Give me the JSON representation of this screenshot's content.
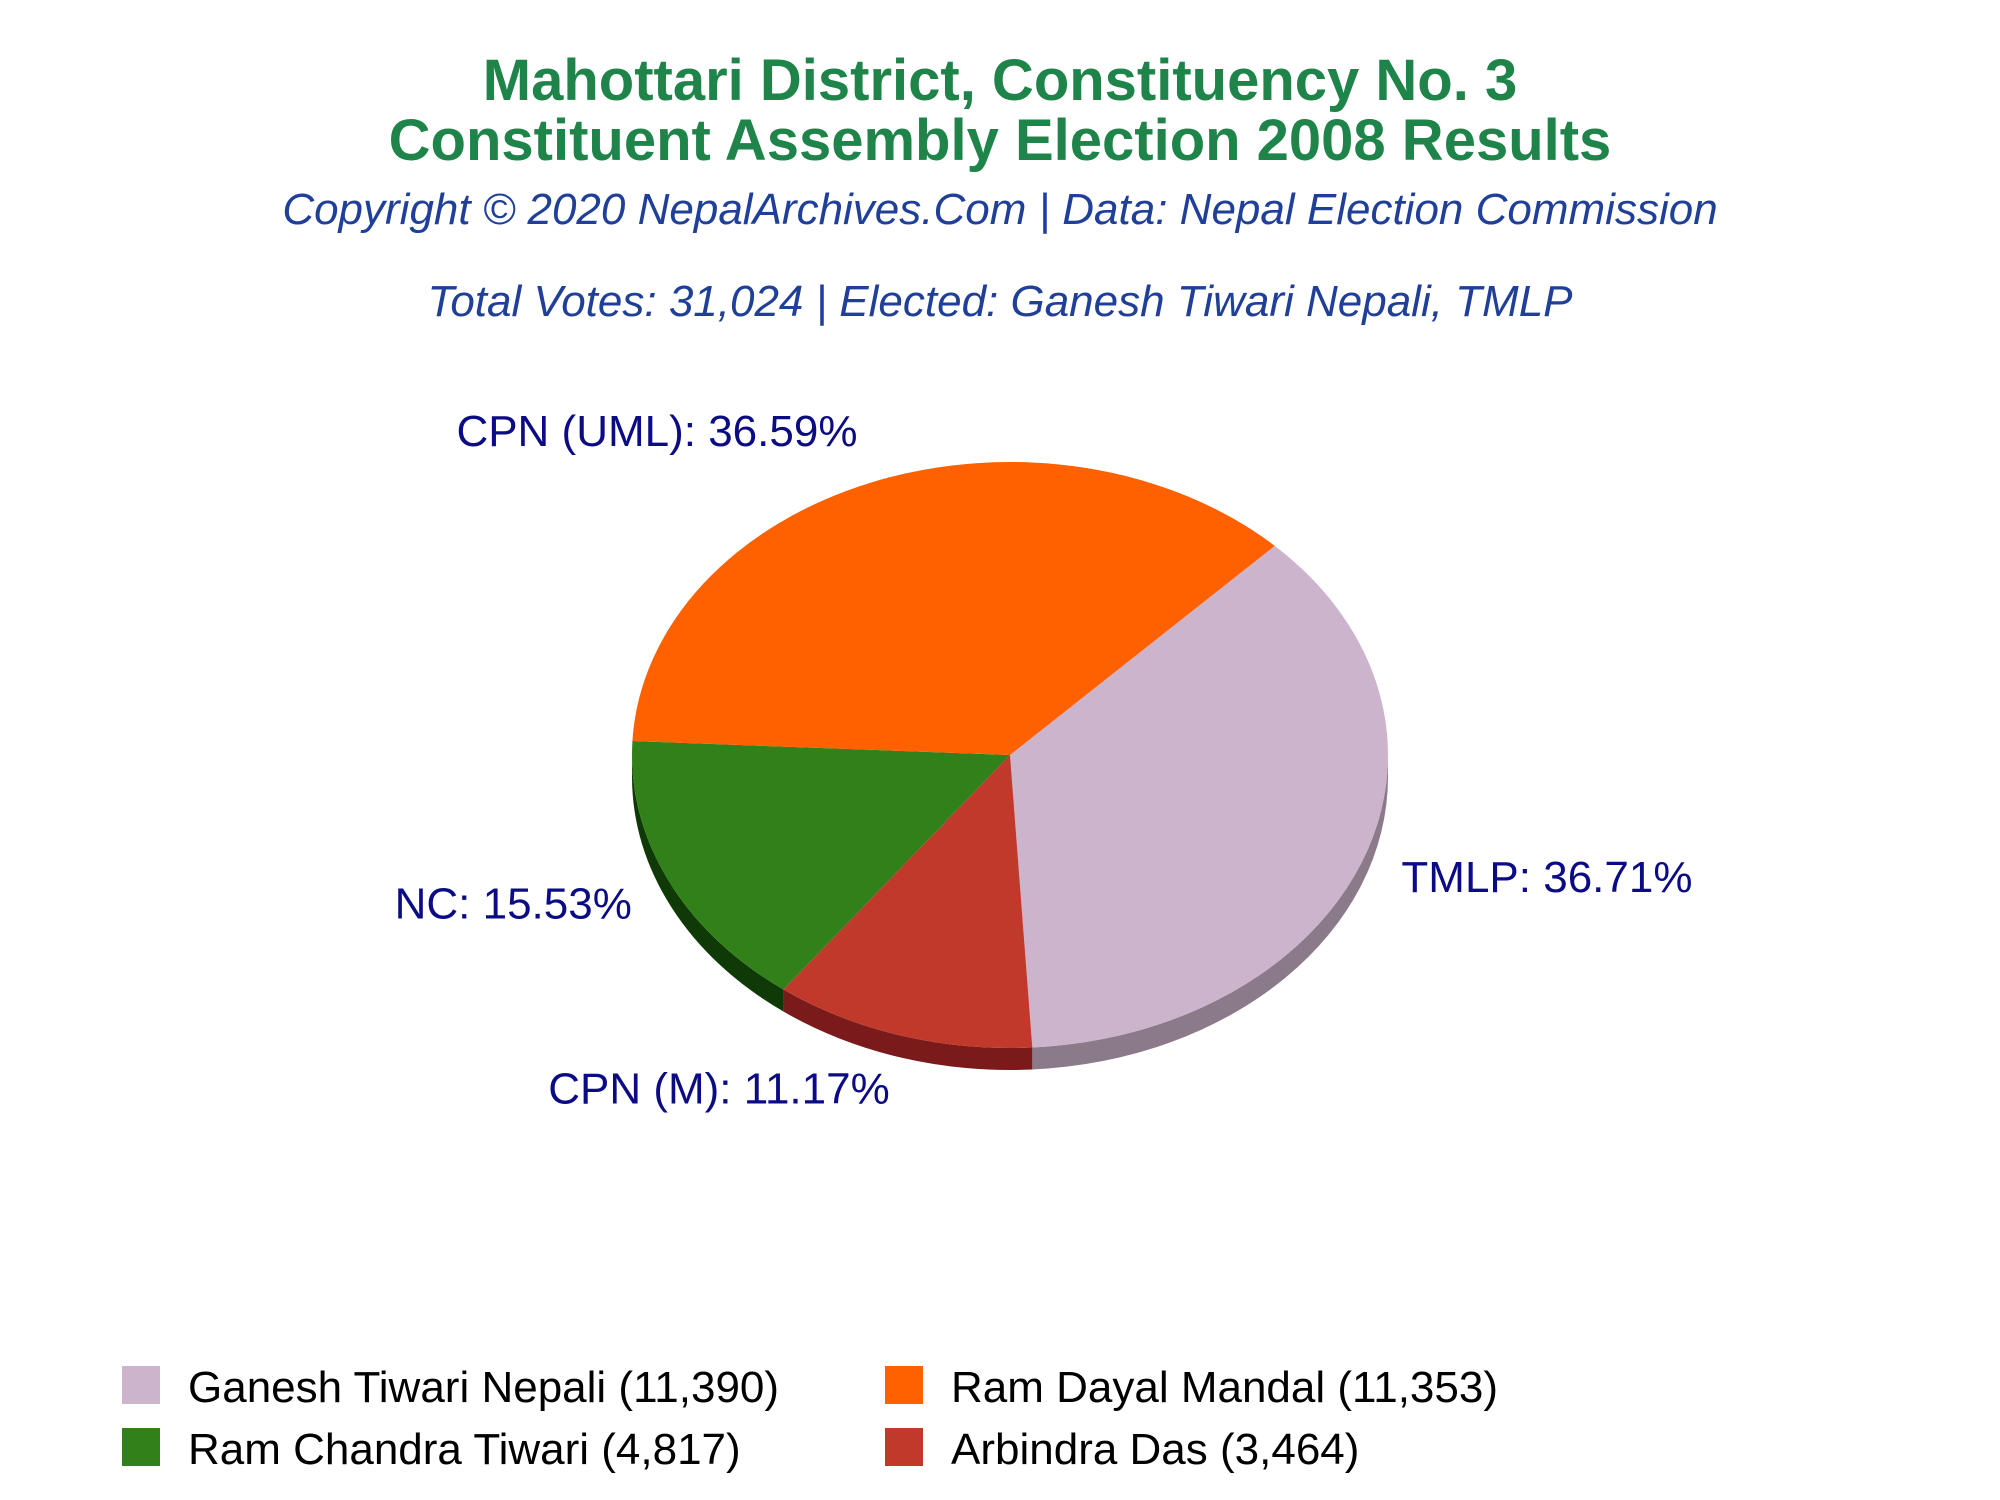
{
  "header": {
    "title_line1": "Mahottari District, Constituency No. 3",
    "title_line2": "Constituent Assembly Election 2008 Results",
    "copyright": "Copyright © 2020 NepalArchives.Com | Data: Nepal Election Commission",
    "summary": "Total Votes: 31,024 | Elected: Ganesh Tiwari Nepali, TMLP"
  },
  "chart_data": {
    "type": "pie",
    "title": "Mahottari District, Constituency No. 3 Constituent Assembly Election 2008 Results",
    "style": "3d",
    "total_votes": 31024,
    "slices": [
      {
        "party": "TMLP",
        "candidate": "Ganesh Tiwari Nepali",
        "votes": 11390,
        "percent": 36.71,
        "label": "TMLP: 36.71%",
        "legend": "Ganesh Tiwari Nepali (11,390)",
        "color": "#cdb4cd"
      },
      {
        "party": "CPN (M)",
        "candidate": "Arbindra Das",
        "votes": 3464,
        "percent": 11.17,
        "label": "CPN (M): 11.17%",
        "legend": "Arbindra Das (3,464)",
        "color": "#c0392b"
      },
      {
        "party": "NC",
        "candidate": "Ram Chandra Tiwari",
        "votes": 4817,
        "percent": 15.53,
        "label": "NC: 15.53%",
        "legend": "Ram Chandra Tiwari (4,817)",
        "color": "#328019"
      },
      {
        "party": "CPN (UML)",
        "candidate": "Ram Dayal Mandal",
        "votes": 11353,
        "percent": 36.59,
        "label": "CPN (UML): 36.59%",
        "legend": "Ram Dayal Mandal (11,353)",
        "color": "#ff6000"
      }
    ],
    "legend_position": "bottom",
    "legend_order": [
      "Ganesh Tiwari Nepali (11,390)",
      "Ram Dayal Mandal (11,353)",
      "Ram Chandra Tiwari (4,817)",
      "Arbindra Das (3,464)"
    ]
  }
}
